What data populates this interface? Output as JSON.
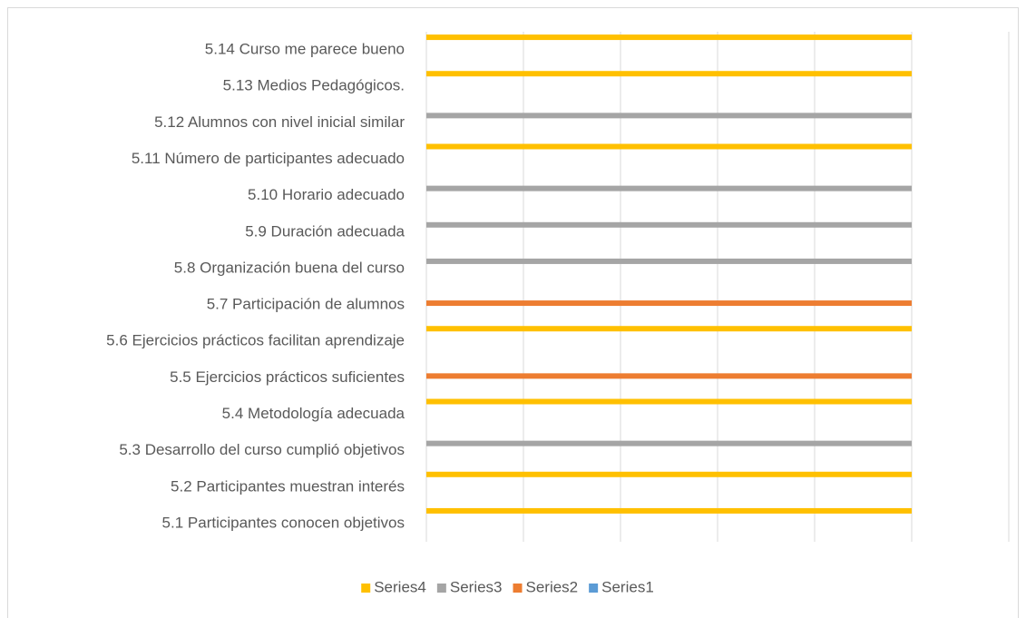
{
  "chart_data": {
    "type": "hbar",
    "categories": [
      "5.1 Participantes conocen objetivos",
      "5.2 Participantes muestran interés",
      "5.3 Desarrollo del curso cumplió objetivos",
      "5.4 Metodología adecuada",
      "5.5 Ejercicios prácticos suficientes",
      "5.6 Ejercicios prácticos facilitan aprendizaje",
      "5.7 Participación de alumnos",
      "5.8 Organización buena del curso",
      "5.9 Duración adecuada",
      "5.10 Horario adecuado",
      "5.11 Número de participantes adecuado",
      "5.12 Alumnos con nivel inicial similar",
      "5.13 Medios Pedagógicos.",
      "5.14 Curso me parece bueno"
    ],
    "series": [
      {
        "name": "Series1",
        "color": "#5b9bd5",
        "values": [
          0,
          0,
          0,
          0,
          0,
          0,
          0,
          0,
          0,
          0,
          0,
          0,
          0,
          0
        ]
      },
      {
        "name": "Series2",
        "color": "#ed7d31",
        "values": [
          0,
          0,
          0,
          0,
          5,
          0,
          5,
          0,
          0,
          0,
          0,
          0,
          0,
          0
        ]
      },
      {
        "name": "Series3",
        "color": "#a5a5a5",
        "values": [
          0,
          0,
          5,
          0,
          0,
          0,
          0,
          5,
          5,
          5,
          0,
          5,
          0,
          0
        ]
      },
      {
        "name": "Series4",
        "color": "#ffc000",
        "values": [
          5,
          5,
          0,
          5,
          0,
          5,
          0,
          0,
          0,
          0,
          5,
          0,
          5,
          5
        ]
      }
    ],
    "xlim": [
      0,
      6
    ],
    "xticks": [
      0,
      1,
      2,
      3,
      4,
      5,
      6
    ],
    "grid": true,
    "legend": "bottom"
  }
}
